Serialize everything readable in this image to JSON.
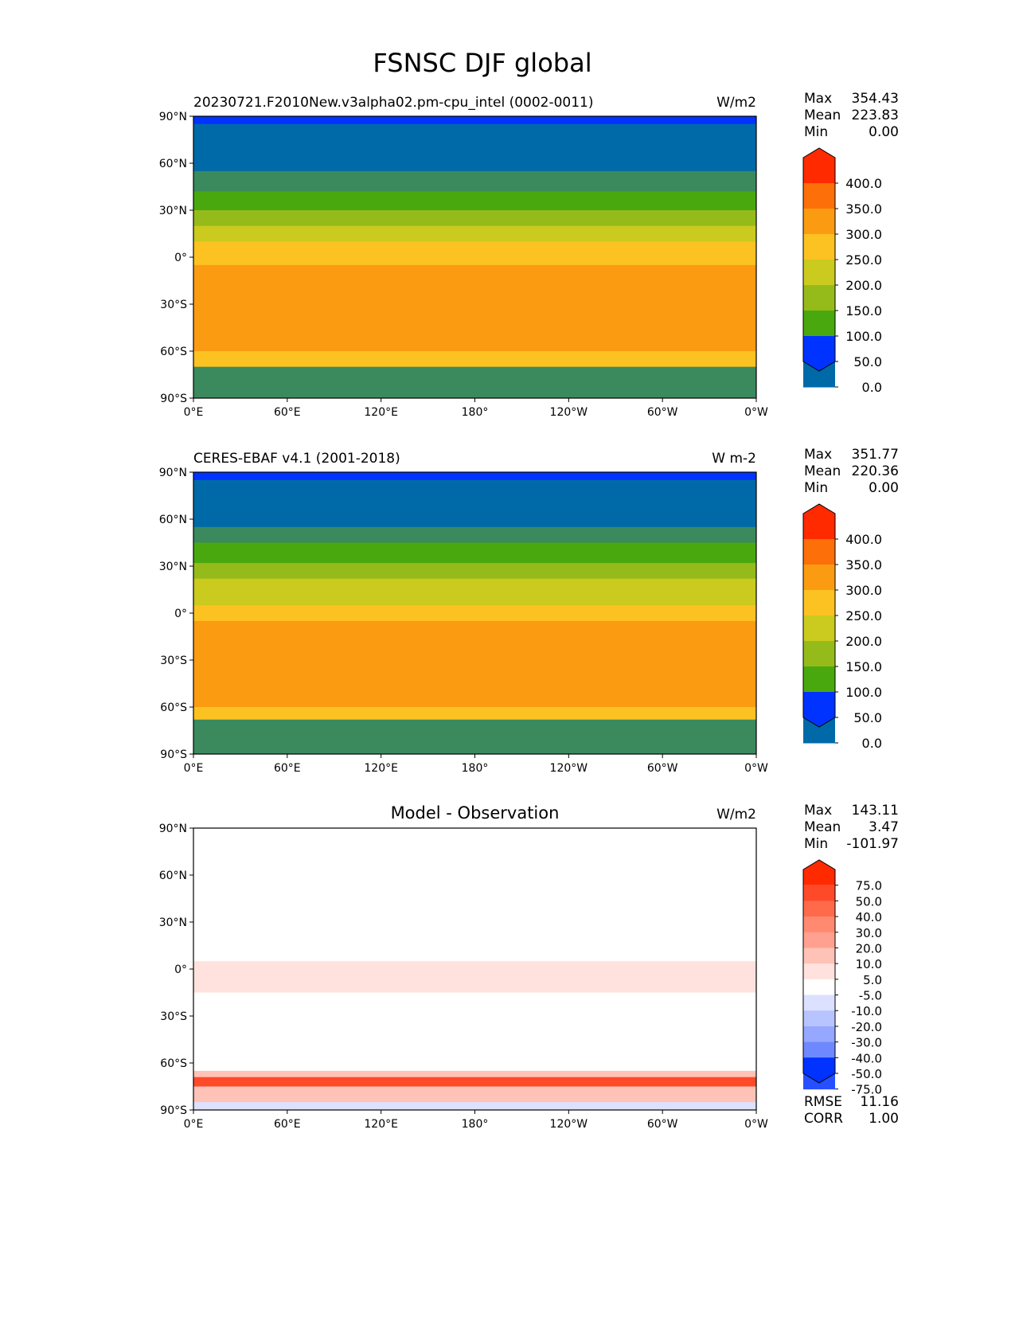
{
  "chart_data": {
    "type": "heatmap",
    "title": "FSNSC DJF global",
    "lon_ticks": [
      "0°E",
      "60°E",
      "120°E",
      "180°",
      "120°W",
      "60°W",
      "0°W"
    ],
    "lat_ticks": [
      "90°N",
      "60°N",
      "30°N",
      "0°",
      "30°S",
      "60°S",
      "90°S"
    ],
    "panels": [
      {
        "left_title": "20230721.F2010New.v3alpha02.pm-cpu_intel (0002-0011)",
        "center_title": "",
        "units": "W/m2",
        "stats": [
          [
            "Max",
            "354.43"
          ],
          [
            "Mean",
            "223.83"
          ],
          [
            "Min",
            "0.00"
          ]
        ],
        "colorbar": {
          "labels": [
            "400.0",
            "350.0",
            "300.0",
            "250.0",
            "200.0",
            "150.0",
            "100.0",
            "50.0",
            "0.0"
          ],
          "colors": [
            "#ff2a00",
            "#fd6f08",
            "#fb9b12",
            "#fcc222",
            "#cbca1e",
            "#95bb1a",
            "#4aa80f",
            "#3a8a5e",
            "#006aa8",
            "#0033ff"
          ]
        },
        "zonal_bands": [
          [
            90,
            85,
            9
          ],
          [
            85,
            55,
            8
          ],
          [
            55,
            42,
            7
          ],
          [
            42,
            30,
            6
          ],
          [
            30,
            20,
            5
          ],
          [
            20,
            10,
            4
          ],
          [
            10,
            -5,
            3
          ],
          [
            -5,
            -60,
            2
          ],
          [
            -60,
            -70,
            3
          ],
          [
            -70,
            -90,
            7
          ]
        ]
      },
      {
        "left_title": "CERES-EBAF v4.1 (2001-2018)",
        "center_title": "",
        "units": "W m-2",
        "stats": [
          [
            "Max",
            "351.77"
          ],
          [
            "Mean",
            "220.36"
          ],
          [
            "Min",
            "0.00"
          ]
        ],
        "colorbar": {
          "labels": [
            "400.0",
            "350.0",
            "300.0",
            "250.0",
            "200.0",
            "150.0",
            "100.0",
            "50.0",
            "0.0"
          ],
          "colors": [
            "#ff2a00",
            "#fd6f08",
            "#fb9b12",
            "#fcc222",
            "#cbca1e",
            "#95bb1a",
            "#4aa80f",
            "#3a8a5e",
            "#006aa8",
            "#0033ff"
          ]
        },
        "zonal_bands": [
          [
            90,
            85,
            9
          ],
          [
            85,
            55,
            8
          ],
          [
            55,
            45,
            7
          ],
          [
            45,
            32,
            6
          ],
          [
            32,
            22,
            5
          ],
          [
            22,
            5,
            4
          ],
          [
            5,
            -5,
            3
          ],
          [
            -5,
            -60,
            2
          ],
          [
            -60,
            -68,
            3
          ],
          [
            -68,
            -90,
            7
          ]
        ]
      },
      {
        "left_title": "",
        "center_title": "Model - Observation",
        "units": "W/m2",
        "stats": [
          [
            "Max",
            "143.11"
          ],
          [
            "Mean",
            "3.47"
          ],
          [
            "Min",
            "-101.97"
          ]
        ],
        "extra_stats": [
          [
            "RMSE",
            "11.16"
          ],
          [
            "CORR",
            "1.00"
          ]
        ],
        "colorbar": {
          "labels": [
            "75.0",
            "50.0",
            "40.0",
            "30.0",
            "20.0",
            "10.0",
            "5.0",
            "-5.0",
            "-10.0",
            "-20.0",
            "-30.0",
            "-40.0",
            "-50.0",
            "-75.0"
          ],
          "colors": [
            "#ff2a00",
            "#ff4a2a",
            "#ff6a4a",
            "#ff8a70",
            "#ffa090",
            "#ffc2b6",
            "#ffe2dd",
            "#ffffff",
            "#dbe1ff",
            "#b8c4ff",
            "#95a7ff",
            "#6e88ff",
            "#4a6bff",
            "#2650ff",
            "#0033ff"
          ]
        },
        "zonal_bands": [
          [
            90,
            5,
            7
          ],
          [
            5,
            -15,
            6
          ],
          [
            -15,
            -65,
            7
          ],
          [
            -65,
            -69,
            5
          ],
          [
            -69,
            -75,
            1
          ],
          [
            -75,
            -85,
            5
          ],
          [
            -85,
            -90,
            8
          ]
        ]
      }
    ]
  }
}
